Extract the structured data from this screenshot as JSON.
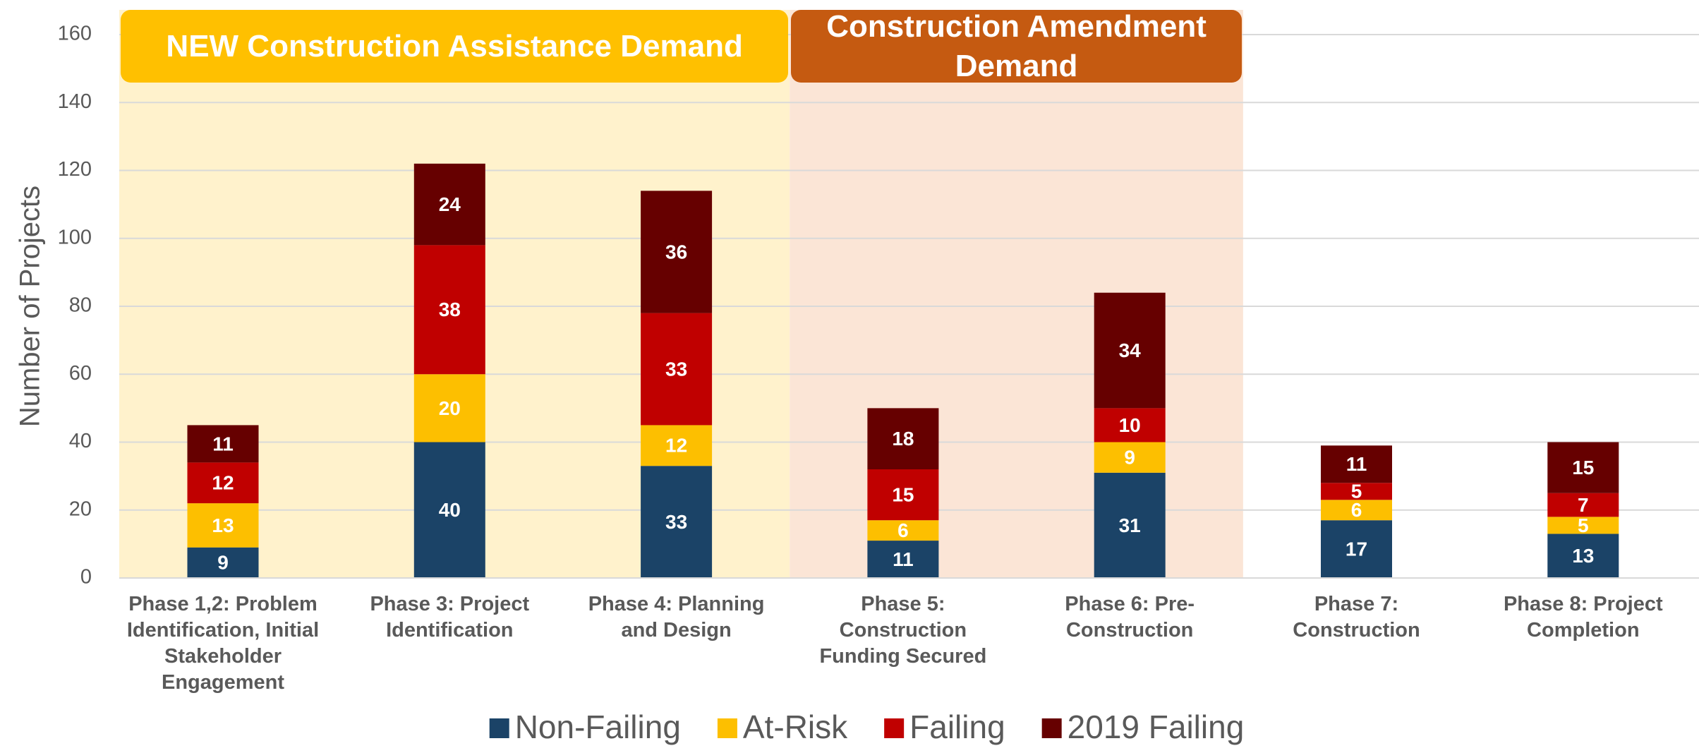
{
  "chart_data": {
    "type": "bar",
    "stacked": true,
    "ylabel": "Number of Projects",
    "annotations": [
      "NEW Construction Assistance Demand",
      "Construction Amendment Demand"
    ],
    "categories": [
      "Phase 1,2: Problem Identification, Initial Stakeholder Engagement",
      "Phase 3: Project Identification",
      "Phase 4: Planning and Design",
      "Phase 5: Construction Funding Secured",
      "Phase 6: Pre-Construction",
      "Phase 7: Construction",
      "Phase 8: Project Completion"
    ],
    "series": [
      {
        "name": "Non-Failing",
        "color": "#1b4367",
        "values": [
          9,
          40,
          33,
          11,
          31,
          17,
          13
        ]
      },
      {
        "name": "At-Risk",
        "color": "#fdbf00",
        "values": [
          13,
          20,
          12,
          6,
          9,
          6,
          5
        ]
      },
      {
        "name": "Failing",
        "color": "#c00000",
        "values": [
          12,
          38,
          33,
          15,
          10,
          5,
          7
        ]
      },
      {
        "name": "2019 Failing",
        "color": "#660000",
        "values": [
          11,
          24,
          36,
          18,
          34,
          11,
          15
        ]
      }
    ],
    "ylim": [
      0,
      160
    ],
    "yticks": [
      0,
      20,
      40,
      60,
      80,
      100,
      120,
      140,
      160
    ],
    "grid": true,
    "legend": "bottom"
  }
}
